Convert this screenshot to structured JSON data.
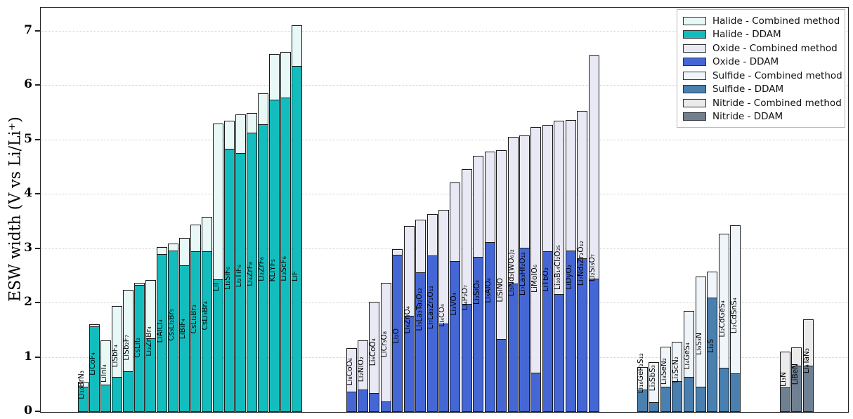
{
  "figure": {
    "y_axis_title": "ESW width (V vs Li/Li⁺)",
    "y_ticks": [
      0,
      1,
      2,
      3,
      4,
      5,
      6,
      7
    ]
  },
  "legend": {
    "items": [
      {
        "label": "Halide - Combined method",
        "fill": "#E7F8F7"
      },
      {
        "label": "Halide - DDAM",
        "fill": "#14BDBD"
      },
      {
        "label": "Oxide - Combined method",
        "fill": "#E9E9F5"
      },
      {
        "label": "Oxide - DDAM",
        "fill": "#4567D5"
      },
      {
        "label": "Sulfide - Combined method",
        "fill": "#F0F5FA"
      },
      {
        "label": "Sulfide - DDAM",
        "fill": "#4A80B0"
      },
      {
        "label": "Nitride - Combined method",
        "fill": "#EBEBEB"
      },
      {
        "label": "Nitride - DDAM",
        "fill": "#6E8092"
      }
    ]
  },
  "chart_data": {
    "type": "bar",
    "title": "",
    "xlabel": "",
    "ylabel": "ESW width (V vs Li/Li⁺)",
    "ylim": [
      0,
      7.43
    ],
    "yticks": [
      0,
      1,
      2,
      3,
      4,
      5,
      6,
      7
    ],
    "grid": "horizontal-dotted",
    "legend_position": "upper-right",
    "note": "Each bar: solid DDAM value drawn over light Combined-method value (V vs Li/Li+)",
    "groups": [
      {
        "name": "Halide",
        "colors": {
          "combined": "#E7F8F7",
          "ddam": "#14BDBD"
        },
        "bars": [
          {
            "label": "Li₁₀BrN₃",
            "ddam": 0.47,
            "combined": 0.56
          },
          {
            "label": "LiCoF₄",
            "ddam": 1.58,
            "combined": 1.61
          },
          {
            "label": "LiInI₄",
            "ddam": 0.5,
            "combined": 1.31
          },
          {
            "label": "LiSbF₄",
            "ddam": 0.64,
            "combined": 1.95
          },
          {
            "label": "LiSb₂F₇",
            "ddam": 0.75,
            "combined": 2.25
          },
          {
            "label": "CsLiI₂",
            "ddam": 2.33,
            "combined": 2.37
          },
          {
            "label": "Li₂ZnBr₄",
            "ddam": 1.35,
            "combined": 2.43
          },
          {
            "label": "LiAlCl₄",
            "ddam": 2.9,
            "combined": 3.03
          },
          {
            "label": "Cs₃Li₂Br₅",
            "ddam": 2.97,
            "combined": 3.1
          },
          {
            "label": "LiBiF₄",
            "ddam": 2.7,
            "combined": 3.2
          },
          {
            "label": "CsLi₂Br₃",
            "ddam": 2.95,
            "combined": 3.44
          },
          {
            "label": "CsLi₃Br₄",
            "ddam": 2.95,
            "combined": 3.59
          },
          {
            "label": "LiI",
            "ddam": 2.44,
            "combined": 5.3
          },
          {
            "label": "Li₂SiF₆",
            "ddam": 4.84,
            "combined": 5.35
          },
          {
            "label": "Li₂TiF₆",
            "ddam": 4.76,
            "combined": 5.47
          },
          {
            "label": "Li₄ZrF₈",
            "ddam": 5.13,
            "combined": 5.5
          },
          {
            "label": "Li₂ZrF₆",
            "ddam": 5.29,
            "combined": 5.86
          },
          {
            "label": "KLiYF₅",
            "ddam": 5.74,
            "combined": 6.58
          },
          {
            "label": "Li₃ScF₆",
            "ddam": 5.78,
            "combined": 6.62
          },
          {
            "label": "LiF",
            "ddam": 6.36,
            "combined": 7.11
          }
        ]
      },
      {
        "name": "Oxide",
        "colors": {
          "combined": "#E9E9F5",
          "ddam": "#4567D5"
        },
        "bars": [
          {
            "label": "Li₈CoO₆",
            "ddam": 0.37,
            "combined": 1.17
          },
          {
            "label": "Li₂NiO₂",
            "ddam": 0.41,
            "combined": 1.32
          },
          {
            "label": "Li₆CoO₄",
            "ddam": 0.35,
            "combined": 2.02
          },
          {
            "label": "LiCr₃O₈",
            "ddam": 0.2,
            "combined": 2.38
          },
          {
            "label": "Li₂O",
            "ddam": 2.89,
            "combined": 3.0
          },
          {
            "label": "Li₆ZnO₄",
            "ddam": 1.77,
            "combined": 3.42
          },
          {
            "label": "Li₅La₃Ta₂O₁₂",
            "ddam": 2.57,
            "combined": 3.54
          },
          {
            "label": "Li₇La₃Zr₂O₁₂",
            "ddam": 2.88,
            "combined": 3.64
          },
          {
            "label": "Li₄CO₄",
            "ddam": 1.63,
            "combined": 3.72
          },
          {
            "label": "Li₃VO₄",
            "ddam": 2.77,
            "combined": 4.22
          },
          {
            "label": "Li₄P₂O₇",
            "ddam": 1.99,
            "combined": 4.46
          },
          {
            "label": "Li₂SiO₃",
            "ddam": 2.85,
            "combined": 4.71
          },
          {
            "label": "Li₅AlO₄",
            "ddam": 3.12,
            "combined": 4.79
          },
          {
            "label": "LiSiNO",
            "ddam": 1.34,
            "combined": 4.81
          },
          {
            "label": "Li₃Nd₃(WO₆)₂",
            "ddam": 2.36,
            "combined": 5.06
          },
          {
            "label": "Li₇La₃Hf₂O₁₂",
            "ddam": 3.02,
            "combined": 5.09
          },
          {
            "label": "LiMoIO₆",
            "ddam": 0.72,
            "combined": 5.24
          },
          {
            "label": "LiTbO₂",
            "ddam": 2.95,
            "combined": 5.28
          },
          {
            "label": "Li₁₀B₁₄Cl₂O₂₅",
            "ddam": 2.17,
            "combined": 5.35
          },
          {
            "label": "LiDyO₂",
            "ddam": 2.97,
            "combined": 5.37
          },
          {
            "label": "Li₇Nd₃Zr₂O₁₂",
            "ddam": 2.83,
            "combined": 5.54
          },
          {
            "label": "Li₂Si₃O₇",
            "ddam": 2.45,
            "combined": 6.56
          }
        ]
      },
      {
        "name": "Sulfide",
        "colors": {
          "combined": "#F0F5FA",
          "ddam": "#4A80B0"
        },
        "bars": [
          {
            "label": "Li₁₀GeP₂S₁₂",
            "ddam": 0.41,
            "combined": 0.83
          },
          {
            "label": "Li₃SbS₃",
            "ddam": 0.18,
            "combined": 0.92
          },
          {
            "label": "Li₈SeN₂",
            "ddam": 0.47,
            "combined": 1.2
          },
          {
            "label": "Li₃ScN₂",
            "ddam": 0.57,
            "combined": 1.29
          },
          {
            "label": "Li₄GeS₄",
            "ddam": 0.65,
            "combined": 1.86
          },
          {
            "label": "Li₉S₃N",
            "ddam": 0.47,
            "combined": 2.49
          },
          {
            "label": "Li₂S",
            "ddam": 2.1,
            "combined": 2.58
          },
          {
            "label": "Li₂CdGeS₄",
            "ddam": 0.81,
            "combined": 3.28
          },
          {
            "label": "Li₂CdSnS₄",
            "ddam": 0.71,
            "combined": 3.43
          }
        ]
      },
      {
        "name": "Nitride",
        "colors": {
          "combined": "#EBEBEB",
          "ddam": "#6E8092"
        },
        "bars": [
          {
            "label": "Li₃N",
            "ddam": 0.45,
            "combined": 1.11
          },
          {
            "label": "LiBeN",
            "ddam": 0.85,
            "combined": 1.19
          },
          {
            "label": "Li₄TaN₃",
            "ddam": 0.85,
            "combined": 1.7
          }
        ]
      }
    ]
  }
}
